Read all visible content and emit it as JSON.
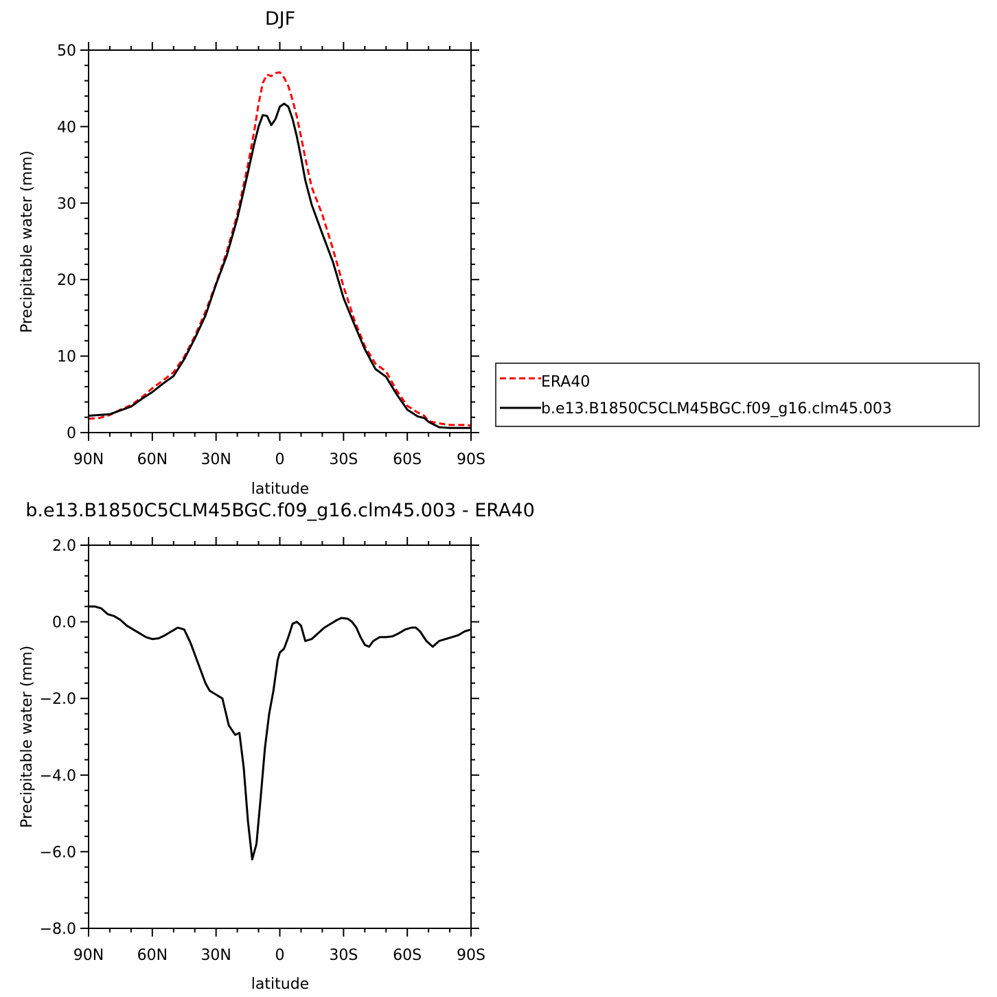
{
  "chart_data": [
    {
      "type": "line",
      "title": "DJF",
      "xlabel": "latitude",
      "ylabel": "Precipitable water (mm)",
      "xlim": [
        90,
        -90
      ],
      "ylim": [
        0,
        50
      ],
      "xticks": [
        {
          "value": 90,
          "label": "90N"
        },
        {
          "value": 60,
          "label": "60N"
        },
        {
          "value": 30,
          "label": "30N"
        },
        {
          "value": 0,
          "label": "0"
        },
        {
          "value": -30,
          "label": "30S"
        },
        {
          "value": -60,
          "label": "60S"
        },
        {
          "value": -90,
          "label": "90S"
        }
      ],
      "yticks": [
        {
          "value": 0,
          "label": "0"
        },
        {
          "value": 10,
          "label": "10"
        },
        {
          "value": 20,
          "label": "20"
        },
        {
          "value": 30,
          "label": "30"
        },
        {
          "value": 40,
          "label": "40"
        },
        {
          "value": 50,
          "label": "50"
        }
      ],
      "legend": "right",
      "series": [
        {
          "name": "ERA40",
          "color": "#ff0000",
          "dash": true,
          "x": [
            90,
            85,
            80,
            75,
            70,
            65,
            60,
            55,
            50,
            45,
            40,
            35,
            30,
            25,
            20,
            15,
            12,
            10,
            8,
            6,
            4,
            2,
            0,
            -2,
            -4,
            -6,
            -8,
            -10,
            -12,
            -15,
            -20,
            -25,
            -30,
            -35,
            -40,
            -45,
            -50,
            -55,
            -60,
            -65,
            -68,
            -70,
            -75,
            -80,
            -85,
            -88,
            -90
          ],
          "y": [
            1.8,
            1.9,
            2.3,
            3.0,
            3.6,
            4.6,
            5.8,
            6.8,
            7.9,
            9.9,
            12.6,
            15.8,
            19.5,
            23.6,
            28.5,
            35.0,
            39.5,
            43.0,
            45.7,
            46.8,
            46.6,
            47.0,
            47.1,
            46.4,
            45.3,
            43.5,
            41.3,
            38.7,
            35.9,
            32.1,
            28.5,
            24.0,
            19.1,
            14.8,
            11.3,
            9.0,
            8.0,
            5.5,
            3.5,
            2.6,
            2.2,
            1.5,
            1.2,
            1.0,
            1.0,
            1.0,
            0.9
          ]
        },
        {
          "name": "b.e13.B1850C5CLM45BGC.f09_g16.clm45.003",
          "color": "#000000",
          "dash": false,
          "x": [
            90,
            85,
            80,
            75,
            70,
            65,
            60,
            55,
            50,
            45,
            40,
            35,
            30,
            25,
            20,
            15,
            12,
            10,
            8,
            6,
            4,
            2,
            0,
            -2,
            -4,
            -6,
            -8,
            -10,
            -12,
            -15,
            -20,
            -25,
            -30,
            -35,
            -40,
            -45,
            -50,
            -55,
            -60,
            -65,
            -68,
            -70,
            -75,
            -80,
            -85,
            -88,
            -90
          ],
          "y": [
            2.2,
            2.3,
            2.4,
            2.9,
            3.4,
            4.4,
            5.3,
            6.4,
            7.4,
            9.6,
            12.3,
            15.3,
            19.4,
            23.1,
            28.0,
            34.0,
            37.8,
            40.0,
            41.5,
            41.4,
            40.2,
            41.0,
            42.6,
            43.0,
            42.6,
            41.0,
            38.7,
            36.0,
            33.0,
            29.8,
            26.0,
            22.3,
            17.6,
            14.2,
            10.9,
            8.3,
            7.3,
            5.0,
            3.0,
            2.1,
            1.9,
            1.4,
            0.7,
            0.6,
            0.6,
            0.6,
            0.6
          ]
        }
      ]
    },
    {
      "type": "line",
      "title": "b.e13.B1850C5CLM45BGC.f09_g16.clm45.003 - ERA40",
      "xlabel": "latitude",
      "ylabel": "Precipitable water (mm)",
      "xlim": [
        90,
        -90
      ],
      "ylim": [
        -8,
        2
      ],
      "xticks": [
        {
          "value": 90,
          "label": "90N"
        },
        {
          "value": 60,
          "label": "60N"
        },
        {
          "value": 30,
          "label": "30N"
        },
        {
          "value": 0,
          "label": "0"
        },
        {
          "value": -30,
          "label": "30S"
        },
        {
          "value": -60,
          "label": "60S"
        },
        {
          "value": -90,
          "label": "90S"
        }
      ],
      "yticks": [
        {
          "value": 2,
          "label": "2.0"
        },
        {
          "value": 0,
          "label": "0.0"
        },
        {
          "value": -2,
          "label": "−2.0"
        },
        {
          "value": -4,
          "label": "−4.0"
        },
        {
          "value": -6,
          "label": "−6.0"
        },
        {
          "value": -8,
          "label": "−8.0"
        }
      ],
      "series": [
        {
          "color": "#000000",
          "dash": false,
          "x": [
            90,
            87,
            84,
            81,
            78,
            75,
            72,
            69,
            66,
            63,
            60,
            57,
            54,
            51,
            48,
            45,
            42,
            39,
            37,
            35,
            33,
            30,
            27,
            24,
            21,
            19,
            17,
            15,
            13,
            11,
            9,
            7,
            5,
            3,
            1,
            0,
            -2,
            -4,
            -6,
            -8,
            -10,
            -12,
            -15,
            -18,
            -21,
            -24,
            -27,
            -29,
            -32,
            -34,
            -36,
            -38,
            -40,
            -42,
            -44,
            -47,
            -50,
            -53,
            -56,
            -59,
            -62,
            -64,
            -66,
            -69,
            -72,
            -75,
            -78,
            -81,
            -84,
            -87,
            -90
          ],
          "y": [
            0.4,
            0.4,
            0.35,
            0.2,
            0.15,
            0.05,
            -0.1,
            -0.2,
            -0.3,
            -0.4,
            -0.45,
            -0.43,
            -0.35,
            -0.25,
            -0.15,
            -0.2,
            -0.55,
            -1.0,
            -1.3,
            -1.6,
            -1.8,
            -1.9,
            -2.0,
            -2.7,
            -2.95,
            -2.9,
            -3.8,
            -5.2,
            -6.2,
            -5.8,
            -4.6,
            -3.3,
            -2.4,
            -1.8,
            -1.0,
            -0.8,
            -0.7,
            -0.4,
            -0.05,
            0.0,
            -0.1,
            -0.5,
            -0.45,
            -0.3,
            -0.15,
            -0.05,
            0.05,
            0.1,
            0.08,
            0.0,
            -0.15,
            -0.4,
            -0.6,
            -0.65,
            -0.5,
            -0.4,
            -0.4,
            -0.38,
            -0.3,
            -0.2,
            -0.15,
            -0.15,
            -0.25,
            -0.5,
            -0.65,
            -0.5,
            -0.45,
            -0.4,
            -0.35,
            -0.25,
            -0.2
          ]
        }
      ]
    }
  ]
}
